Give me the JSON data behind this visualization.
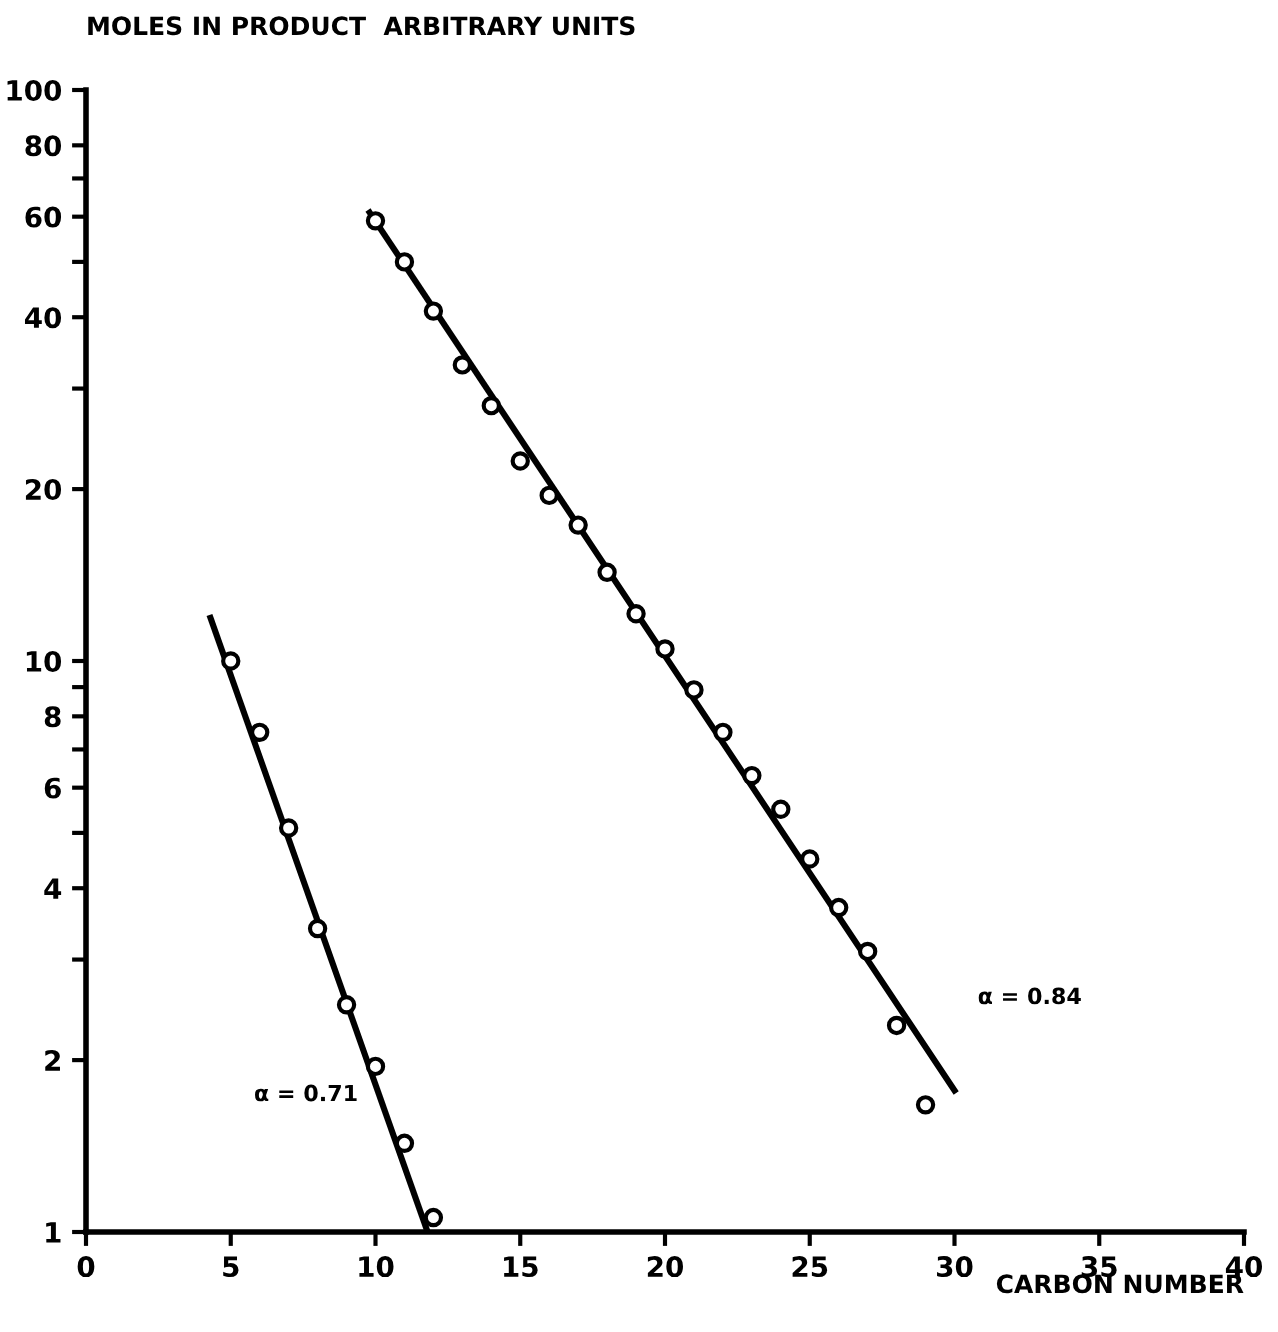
{
  "chart_data": {
    "type": "scatter",
    "ylabel": "MOLES IN PRODUCT  ARBITRARY UNITS",
    "xlabel": "CARBON NUMBER",
    "log": "y",
    "grid": false,
    "legend": false,
    "xlim": [
      0,
      40
    ],
    "xticks": [
      0,
      5,
      10,
      15,
      20,
      25,
      30,
      35,
      40
    ],
    "ylim": [
      1,
      100
    ],
    "yticks": [
      1,
      {
        "value": 2,
        "label": "2"
      },
      {
        "value": 3,
        "label": null
      },
      4,
      {
        "value": 5,
        "label": null
      },
      6,
      {
        "value": 7,
        "label": null
      },
      8,
      {
        "value": 9,
        "label": null
      },
      10,
      20,
      {
        "value": 30,
        "label": null
      },
      40,
      {
        "value": 50,
        "label": null
      },
      60,
      {
        "value": 70,
        "label": null
      },
      80,
      100
    ],
    "series": [
      {
        "marker": "circle",
        "color": "#000000",
        "x": [
          5,
          6,
          7,
          8,
          9,
          10,
          11,
          12
        ],
        "values": [
          10,
          7.5,
          5.1,
          3.4,
          2.5,
          1.95,
          1.43,
          1.06
        ]
      },
      {
        "type": "line",
        "marker": "none",
        "line_style": "solid",
        "color": "#000000",
        "x": [
          4.3,
          11.8
        ],
        "values": [
          11.9,
          1.0
        ]
      },
      {
        "marker": "circle",
        "color": "#000000",
        "x": [
          10,
          11,
          12,
          13,
          14,
          15,
          16,
          17,
          18,
          19,
          20,
          21,
          22,
          23,
          24,
          25,
          26,
          27,
          28,
          29
        ],
        "values": [
          59,
          50,
          41,
          33,
          28,
          22.4,
          19.5,
          17.3,
          14.3,
          12.1,
          10.5,
          8.9,
          7.5,
          6.3,
          5.5,
          4.5,
          3.7,
          3.1,
          2.3,
          1.67
        ]
      },
      {
        "type": "line",
        "marker": "none",
        "line_style": "solid",
        "color": "#000000",
        "x": [
          9.8,
          30
        ],
        "values": [
          61,
          1.77
        ]
      }
    ],
    "annotations": [
      "α = 0.71",
      "α = 0.84"
    ]
  }
}
